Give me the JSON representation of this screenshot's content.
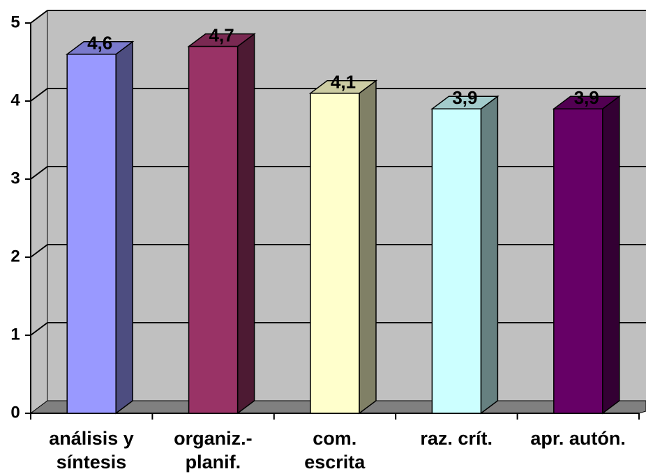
{
  "chart_data": {
    "type": "bar3d",
    "categories": [
      "análisis y\nsíntesis",
      "organiz.-\nplanif.",
      "com.\nescrita",
      "raz. crít.",
      "apr. autón."
    ],
    "values": [
      4.6,
      4.7,
      4.1,
      3.9,
      3.9
    ],
    "value_labels": [
      "4,6",
      "4,7",
      "4,1",
      "3,9",
      "3,9"
    ],
    "colors": [
      "#9999ff",
      "#993366",
      "#ffffcc",
      "#ccffff",
      "#660066"
    ],
    "ylim": [
      0,
      5
    ],
    "yticks": [
      0,
      1,
      2,
      3,
      4,
      5
    ],
    "grid": true
  }
}
